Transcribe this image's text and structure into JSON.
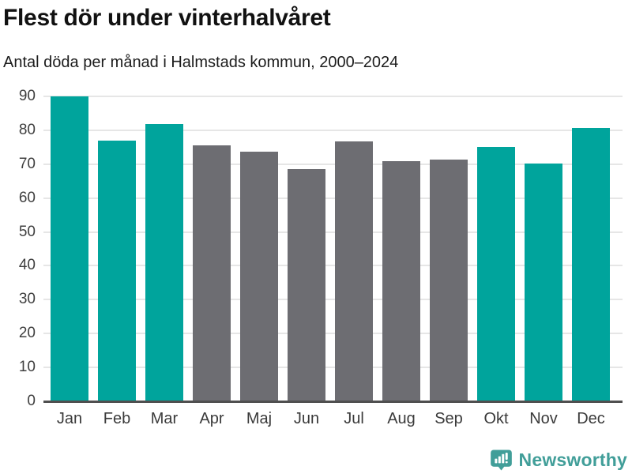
{
  "header": {
    "title": "Flest dör under vinterhalvåret",
    "subtitle": "Antal döda per månad i Halmstads kommun, 2000–2024"
  },
  "chart_data": {
    "type": "bar",
    "title": "Flest dör under vinterhalvåret",
    "subtitle": "Antal döda per månad i Halmstads kommun, 2000–2024",
    "categories": [
      "Jan",
      "Feb",
      "Mar",
      "Apr",
      "Maj",
      "Jun",
      "Jul",
      "Aug",
      "Sep",
      "Okt",
      "Nov",
      "Dec"
    ],
    "values": [
      90,
      77,
      81.8,
      75.5,
      73.7,
      68.6,
      76.7,
      70.9,
      71.3,
      75.1,
      70.1,
      80.7
    ],
    "bar_color_keys": [
      "teal",
      "teal",
      "teal",
      "gray",
      "gray",
      "gray",
      "gray",
      "gray",
      "gray",
      "teal",
      "teal",
      "teal"
    ],
    "colors": {
      "teal": "#00a49c",
      "gray": "#6d6d72"
    },
    "xlabel": "",
    "ylabel": "",
    "ylim": [
      0,
      90
    ],
    "yticks": [
      0,
      10,
      20,
      30,
      40,
      50,
      60,
      70,
      80,
      90
    ],
    "grid": "horizontal",
    "legend": "none",
    "gridline_color": "#e6e6e6",
    "axis_color": "#4f4f4f"
  },
  "footer": {
    "logo_text": "Newsworthy",
    "logo_color": "#419e99",
    "logo_icon": "speech-bubble-bar-chart-exclamation"
  }
}
